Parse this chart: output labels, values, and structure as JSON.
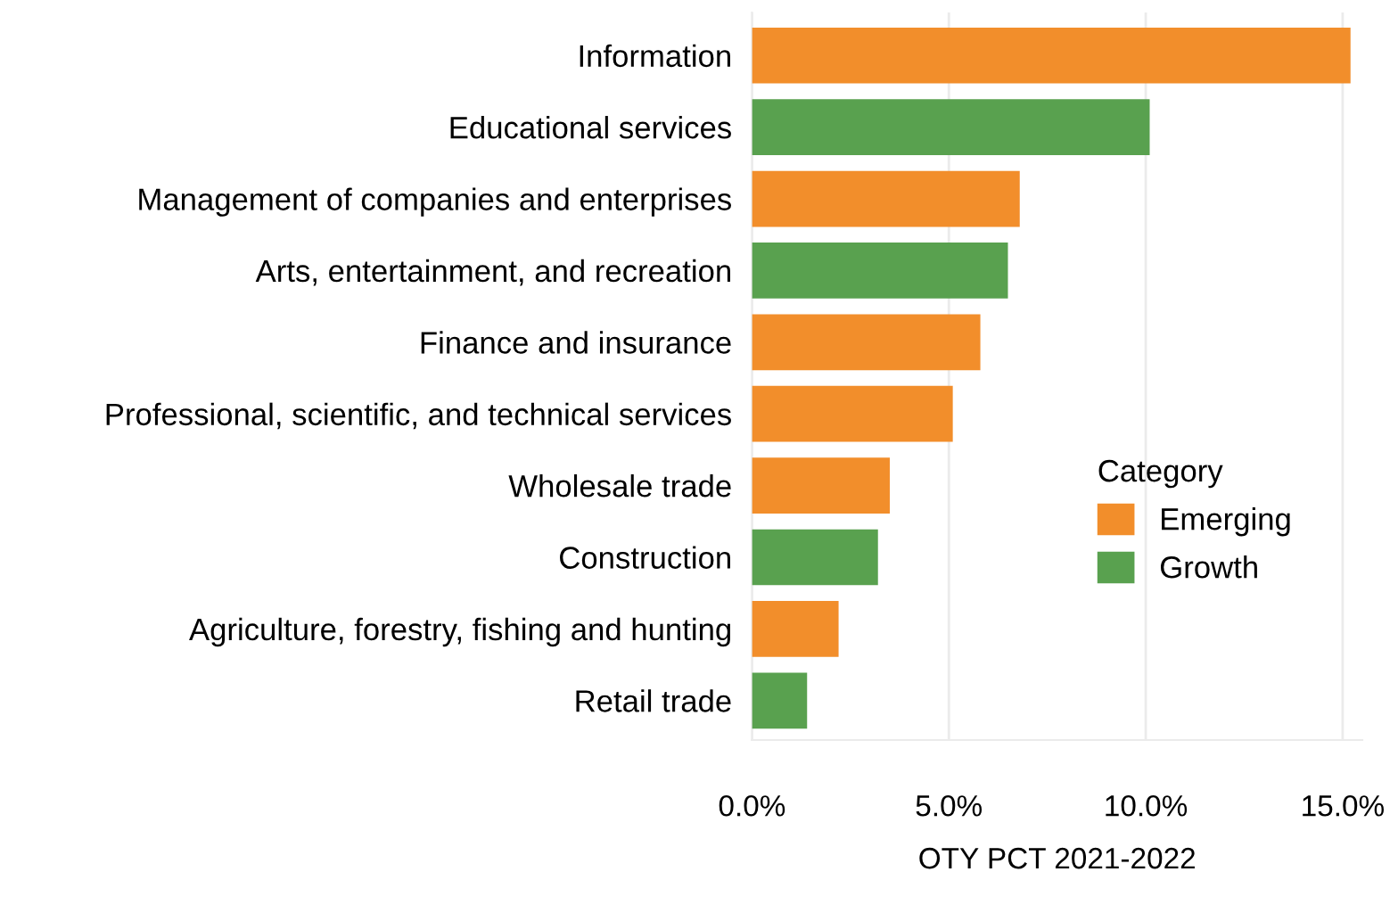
{
  "chart_data": {
    "type": "bar",
    "orientation": "horizontal",
    "xlabel": "OTY PCT 2021-2022",
    "legend_title": "Category",
    "legend": "right",
    "grid": "x",
    "categories": [
      "Information",
      "Educational services",
      "Management of companies and enterprises",
      "Arts, entertainment, and recreation",
      "Finance and insurance",
      "Professional, scientific, and technical services",
      "Wholesale trade",
      "Construction",
      "Agriculture, forestry, fishing and hunting",
      "Retail trade"
    ],
    "series": [
      {
        "name": "Emerging",
        "color": "#f28e2b",
        "values": [
          15.2,
          null,
          6.8,
          null,
          5.8,
          5.1,
          3.5,
          null,
          2.2,
          null
        ]
      },
      {
        "name": "Growth",
        "color": "#59a14f",
        "values": [
          null,
          10.1,
          null,
          6.5,
          null,
          null,
          null,
          3.2,
          null,
          1.4
        ]
      }
    ],
    "xlim": [
      0,
      15.5
    ],
    "xticks": [
      {
        "value": 0,
        "label": "0.0%"
      },
      {
        "value": 5,
        "label": "5.0%"
      },
      {
        "value": 10,
        "label": "10.0%"
      },
      {
        "value": 15,
        "label": "15.0%"
      }
    ]
  }
}
